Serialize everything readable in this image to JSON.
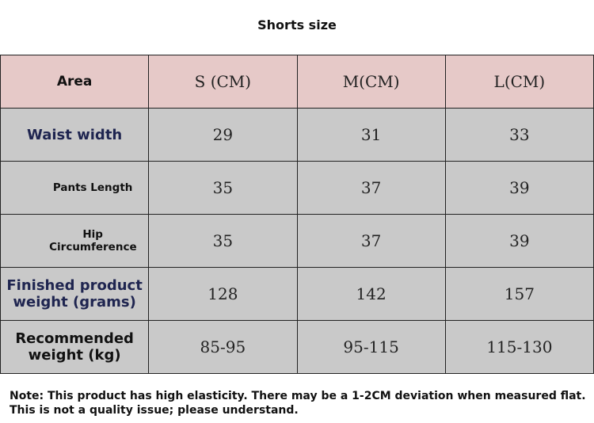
{
  "header": {
    "title": "Shorts size"
  },
  "table": {
    "columns": [
      "Area",
      "S (CM)",
      "M(CM)",
      "L(CM)"
    ],
    "rows": [
      [
        "Waist width",
        29,
        31,
        33
      ],
      [
        "Pants Length",
        35,
        37,
        39
      ],
      [
        "Hip Circumference",
        35,
        37,
        39
      ],
      [
        "Finished product weight (grams)",
        128,
        142,
        157
      ],
      [
        "Recommended weight (kg)",
        "85-95",
        "95-115",
        "115-130"
      ]
    ]
  },
  "note": "Note: This product has high elasticity. There may be a 1-2CM deviation when measured flat. This is not a quality issue; please understand."
}
